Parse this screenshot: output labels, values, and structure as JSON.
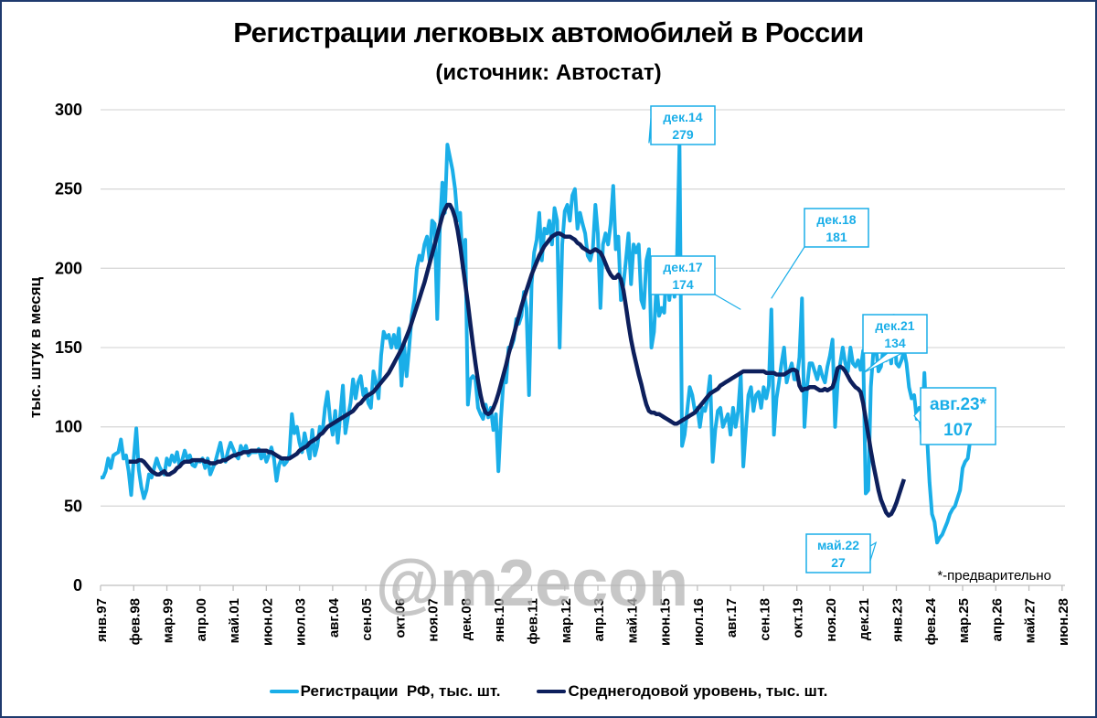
{
  "title": "Регистрации легковых автомобилей в России",
  "subtitle": "(источник: Автостат)",
  "watermark": "@m2econ",
  "note": "*-предварительно",
  "colors": {
    "registrations": "#1aaee8",
    "average": "#0d1f5c",
    "grid": "#d9d9d9",
    "frame": "#1f3a6e"
  },
  "legend": [
    {
      "label": "Регистрации  РФ, тыс. шт.",
      "color": "#1aaee8"
    },
    {
      "label": "Среднегодовой уровень, тыс. шт.",
      "color": "#0d1f5c"
    }
  ],
  "callouts": [
    {
      "line1": "дек.14",
      "line2": "279",
      "month_index": 215,
      "value": 279
    },
    {
      "line1": "дек.17",
      "line2": "174",
      "month_index": 251,
      "value": 174
    },
    {
      "line1": "дек.18",
      "line2": "181",
      "month_index": 263,
      "value": 181
    },
    {
      "line1": "дек.21",
      "line2": "134",
      "month_index": 299,
      "value": 134
    },
    {
      "line1": "май.22",
      "line2": "27",
      "month_index": 304,
      "value": 27
    },
    {
      "line1": "авг.23*",
      "line2": "107",
      "month_index": 319,
      "value": 107
    }
  ],
  "chart_data": {
    "type": "line",
    "title": "Регистрации легковых автомобилей в России",
    "subtitle": "(источник: Автостат)",
    "xlabel": "",
    "ylabel": "тыс. штук в месяц",
    "ylim": [
      0,
      300
    ],
    "yticks": [
      0,
      50,
      100,
      150,
      200,
      250,
      300
    ],
    "grid": true,
    "legend_position": "bottom",
    "x_start": "янв.97",
    "x_frequency": "monthly",
    "x_tick_step_months": 13,
    "x_ticks": [
      "янв.97",
      "фев.98",
      "мар.99",
      "апр.00",
      "май.01",
      "июн.02",
      "июл.03",
      "авг.04",
      "сен.05",
      "окт.06",
      "ноя.07",
      "дек.08",
      "янв.10",
      "фев.11",
      "мар.12",
      "апр.13",
      "май.14",
      "июн.15",
      "июл.16",
      "авг.17",
      "сен.18",
      "окт.19",
      "ноя.20",
      "дек.21",
      "янв.23",
      "фев.24",
      "мар.25",
      "апр.26",
      "май.27",
      "июн.28"
    ],
    "x_range_months": [
      0,
      377
    ],
    "series": [
      {
        "name": "Регистрации РФ, тыс. шт.",
        "start_month_index": 0,
        "values": [
          68,
          68,
          72,
          80,
          74,
          82,
          83,
          84,
          92,
          80,
          82,
          72,
          57,
          80,
          99,
          73,
          62,
          55,
          60,
          70,
          68,
          74,
          80,
          75,
          72,
          70,
          80,
          76,
          82,
          78,
          84,
          75,
          79,
          85,
          80,
          82,
          76,
          75,
          79,
          78,
          80,
          74,
          80,
          70,
          74,
          78,
          84,
          90,
          80,
          78,
          85,
          90,
          86,
          82,
          80,
          88,
          84,
          88,
          82,
          84,
          84,
          84,
          86,
          80,
          84,
          78,
          82,
          87,
          80,
          66,
          76,
          80,
          76,
          78,
          82,
          108,
          96,
          100,
          90,
          84,
          96,
          88,
          80,
          98,
          82,
          88,
          100,
          96,
          112,
          122,
          105,
          95,
          110,
          90,
          108,
          126,
          96,
          106,
          115,
          130,
          118,
          128,
          132,
          120,
          124,
          115,
          112,
          135,
          128,
          118,
          145,
          160,
          156,
          158,
          150,
          158,
          150,
          162,
          126,
          152,
          132,
          150,
          170,
          180,
          200,
          208,
          205,
          215,
          220,
          205,
          230,
          228,
          168,
          225,
          254,
          235,
          278,
          270,
          262,
          250,
          230,
          235,
          200,
          218,
          114,
          130,
          132,
          130,
          112,
          108,
          105,
          114,
          106,
          112,
          98,
          108,
          72,
          105,
          130,
          128,
          150,
          150,
          155,
          168,
          165,
          170,
          185,
          175,
          120,
          190,
          210,
          218,
          235,
          205,
          225,
          222,
          230,
          215,
          238,
          230,
          150,
          215,
          236,
          240,
          230,
          246,
          250,
          225,
          235,
          228,
          222,
          208,
          205,
          212,
          240,
          222,
          175,
          215,
          222,
          215,
          228,
          252,
          212,
          220,
          180,
          190,
          205,
          222,
          190,
          215,
          210,
          215,
          180,
          175,
          205,
          212,
          150,
          160,
          190,
          170,
          175,
          172,
          205,
          180,
          195,
          182,
          204,
          279,
          88,
          95,
          110,
          125,
          120,
          110,
          112,
          100,
          112,
          110,
          118,
          132,
          78,
          98,
          110,
          112,
          100,
          104,
          108,
          95,
          112,
          100,
          110,
          133,
          75,
          98,
          120,
          125,
          110,
          120,
          122,
          112,
          125,
          118,
          126,
          174,
          95,
          118,
          128,
          140,
          150,
          128,
          135,
          140,
          130,
          130,
          144,
          181,
          100,
          125,
          140,
          140,
          135,
          130,
          138,
          132,
          128,
          138,
          145,
          155,
          100,
          128,
          140,
          150,
          140,
          135,
          150,
          140,
          138,
          142,
          136,
          148,
          58,
          60,
          125,
          148,
          150,
          135,
          138,
          150,
          142,
          152,
          140,
          170,
          140,
          138,
          142,
          148,
          140,
          125,
          118,
          120,
          105,
          112,
          95,
          134,
          95,
          65,
          45,
          40,
          27,
          30,
          32,
          36,
          40,
          45,
          48,
          50,
          55,
          60,
          74,
          78,
          80,
          92,
          103,
          107
        ]
      },
      {
        "name": "Среднегодовой уровень, тыс. шт.",
        "start_month_index": 11,
        "values": [
          78,
          78,
          78,
          78,
          79,
          79,
          78,
          76,
          74,
          72,
          71,
          70,
          70,
          71,
          72,
          70,
          70,
          71,
          72,
          74,
          75,
          77,
          78,
          78,
          78,
          79,
          79,
          79,
          79,
          79,
          78,
          78,
          77,
          77,
          77,
          78,
          78,
          79,
          79,
          80,
          81,
          82,
          82,
          83,
          83,
          84,
          84,
          84,
          85,
          85,
          85,
          85,
          85,
          85,
          85,
          84,
          84,
          83,
          82,
          81,
          80,
          80,
          80,
          80,
          81,
          82,
          83,
          85,
          86,
          87,
          88,
          90,
          91,
          92,
          93,
          95,
          96,
          98,
          100,
          101,
          102,
          103,
          104,
          105,
          106,
          107,
          108,
          109,
          110,
          112,
          114,
          115,
          117,
          119,
          120,
          121,
          122,
          124,
          126,
          128,
          130,
          132,
          134,
          137,
          140,
          143,
          146,
          149,
          153,
          157,
          161,
          166,
          171,
          176,
          181,
          186,
          191,
          197,
          203,
          209,
          215,
          221,
          227,
          233,
          237,
          240,
          240,
          237,
          232,
          224,
          214,
          202,
          190,
          178,
          165,
          152,
          140,
          129,
          120,
          113,
          109,
          108,
          109,
          112,
          116,
          121,
          127,
          133,
          139,
          146,
          152,
          158,
          164,
          170,
          176,
          181,
          186,
          191,
          196,
          200,
          204,
          208,
          211,
          214,
          216,
          218,
          220,
          221,
          222,
          222,
          221,
          220,
          220,
          220,
          219,
          218,
          216,
          215,
          213,
          212,
          211,
          210,
          211,
          212,
          211,
          210,
          207,
          203,
          199,
          196,
          194,
          194,
          196,
          193,
          186,
          176,
          165,
          155,
          147,
          140,
          133,
          127,
          120,
          114,
          110,
          109,
          109,
          108,
          108,
          107,
          106,
          105,
          104,
          103,
          102,
          102,
          103,
          104,
          105,
          106,
          107,
          108,
          109,
          111,
          113,
          115,
          117,
          119,
          121,
          122,
          123,
          124,
          126,
          127,
          128,
          129,
          130,
          131,
          132,
          133,
          134,
          135,
          135,
          135,
          135,
          135,
          135,
          135,
          135,
          135,
          134,
          134,
          134,
          134,
          133,
          133,
          133,
          133,
          134,
          135,
          136,
          136,
          135,
          126,
          123,
          124,
          124,
          125,
          125,
          125,
          124,
          123,
          123,
          124,
          123,
          124,
          125,
          130,
          137,
          138,
          137,
          135,
          132,
          129,
          127,
          125,
          124,
          122,
          115,
          105,
          95,
          85,
          76,
          68,
          60,
          54,
          50,
          46,
          44,
          45,
          48,
          52,
          57,
          62,
          67
        ]
      }
    ]
  }
}
